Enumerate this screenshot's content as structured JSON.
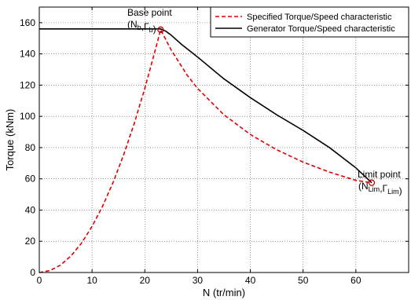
{
  "chart_data": {
    "type": "line",
    "xlabel": "N (tr/min)",
    "ylabel": "Torque (kNm)",
    "xlim": [
      0,
      70
    ],
    "ylim": [
      0,
      170
    ],
    "xticks": [
      "0",
      "10",
      "20",
      "30",
      "40",
      "50",
      "60"
    ],
    "yticks": [
      "0",
      "20",
      "40",
      "60",
      "80",
      "100",
      "120",
      "140",
      "160"
    ],
    "grid": true,
    "legend_position": "top-right",
    "series": [
      {
        "name": "Specified Torque/Speed characteristic",
        "style": "dashed",
        "color": "#e00000",
        "x": [
          0,
          2,
          4,
          6,
          8,
          10,
          12,
          14,
          16,
          18,
          20,
          22,
          23,
          25,
          28,
          30,
          35,
          40,
          45,
          50,
          55,
          60,
          63
        ],
        "y": [
          0,
          1.2,
          4.7,
          10.6,
          18.8,
          29.5,
          42.5,
          57.8,
          75.5,
          95.5,
          118.0,
          142.7,
          155.5,
          142.5,
          126.5,
          117.9,
          101.0,
          88.4,
          78.6,
          70.7,
          64.3,
          59.0,
          57.5
        ]
      },
      {
        "name": "Generator Torque/Speed characteristic",
        "style": "solid",
        "color": "#000000",
        "x": [
          0,
          5,
          10,
          15,
          20,
          23,
          24,
          25,
          27,
          30,
          35,
          40,
          45,
          50,
          55,
          60,
          63
        ],
        "y": [
          156,
          156,
          156,
          156,
          156,
          156,
          154.5,
          152,
          146,
          138,
          124,
          112,
          101,
          91,
          80,
          67,
          57.5
        ]
      }
    ],
    "annotations": [
      {
        "label": "Base point",
        "point_label": "(Nb,Γb)",
        "main1": "(N",
        "sub1": "b",
        "mid": ",Γ",
        "sub2": "b",
        "end": ")",
        "x": 23,
        "y": 155.5
      },
      {
        "label": "Limit point",
        "point_label": "(NLim,ΓLim)",
        "main1": "(N",
        "sub1": "Lim",
        "mid": ",Γ",
        "sub2": "Lim",
        "end": ")",
        "x": 63,
        "y": 57.5
      }
    ]
  }
}
